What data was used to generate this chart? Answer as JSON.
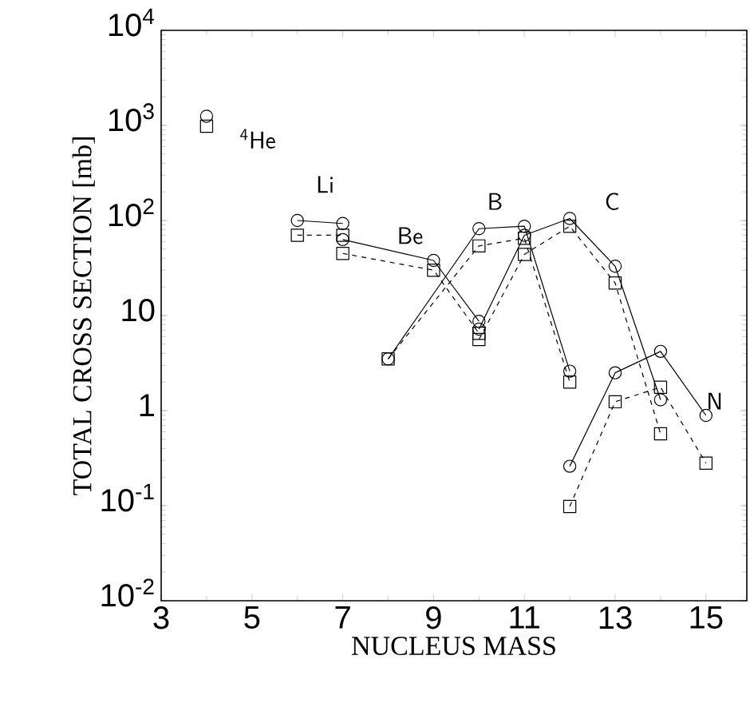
{
  "chart_data": {
    "type": "line",
    "xlabel": "NUCLEUS MASS",
    "ylabel": "TOTAL CROSS SECTION [mb]",
    "log": "y",
    "xlim": [
      3,
      15.9
    ],
    "ylim": [
      0.01,
      10000
    ],
    "xticks": [
      3,
      5,
      7,
      9,
      11,
      13,
      15
    ],
    "yticks": [
      {
        "value": 0.01,
        "label": "10$^{-2}$"
      },
      {
        "value": 0.1,
        "label": "10$^{-1}$"
      },
      1,
      10,
      {
        "value": 100,
        "label": "10$^{2}$"
      },
      {
        "value": 1000,
        "label": "10$^{3}$"
      },
      {
        "value": 10000,
        "label": "10$^{4}$"
      }
    ],
    "series": [
      {
        "type": "scatter",
        "color": "#000000",
        "marker": "circle",
        "x": [
          4
        ],
        "values": [
          1250
        ]
      },
      {
        "type": "scatter",
        "color": "#000000",
        "marker": "square",
        "x": [
          4
        ],
        "values": [
          980
        ]
      },
      {
        "color": "#000000",
        "marker": "circle",
        "line_style": "solid",
        "x": [
          6,
          7
        ],
        "values": [
          100,
          93
        ]
      },
      {
        "color": "#000000",
        "marker": "square",
        "line_style": "dashed",
        "x": [
          6,
          7
        ],
        "values": [
          70,
          70
        ]
      },
      {
        "color": "#000000",
        "marker": "circle",
        "line_style": "solid",
        "x": [
          7,
          9,
          10
        ],
        "values": [
          63,
          38,
          8.7
        ]
      },
      {
        "color": "#000000",
        "marker": "square",
        "line_style": "dashed",
        "x": [
          7,
          9,
          10
        ],
        "values": [
          45,
          30,
          6.5
        ]
      },
      {
        "color": "#000000",
        "marker": "circle",
        "line_style": "solid",
        "x": [
          8,
          10,
          11,
          12
        ],
        "values": [
          3.5,
          82,
          87,
          2.6
        ]
      },
      {
        "color": "#000000",
        "marker": "square",
        "line_style": "dashed",
        "x": [
          8,
          10,
          11,
          12
        ],
        "values": [
          3.5,
          54,
          65,
          2.0
        ]
      },
      {
        "color": "#000000",
        "marker": "circle",
        "line_style": "solid",
        "x": [
          10,
          11,
          12,
          13,
          14
        ],
        "values": [
          7.2,
          70,
          105,
          33,
          1.3
        ]
      },
      {
        "color": "#000000",
        "marker": "square",
        "line_style": "dashed",
        "x": [
          10,
          11,
          12,
          13,
          14
        ],
        "values": [
          5.6,
          44,
          87,
          22,
          0.57
        ]
      },
      {
        "color": "#000000",
        "marker": "circle",
        "line_style": "solid",
        "x": [
          12,
          13,
          14,
          15
        ],
        "values": [
          0.26,
          2.5,
          4.2,
          0.89
        ]
      },
      {
        "color": "#000000",
        "marker": "square",
        "line_style": "dashed",
        "x": [
          12,
          13,
          14,
          15
        ],
        "values": [
          0.098,
          1.24,
          1.76,
          0.28
        ]
      }
    ],
    "annotations": [
      "$^{4}$He",
      "Li",
      "Be",
      "B",
      "C",
      "N"
    ]
  }
}
